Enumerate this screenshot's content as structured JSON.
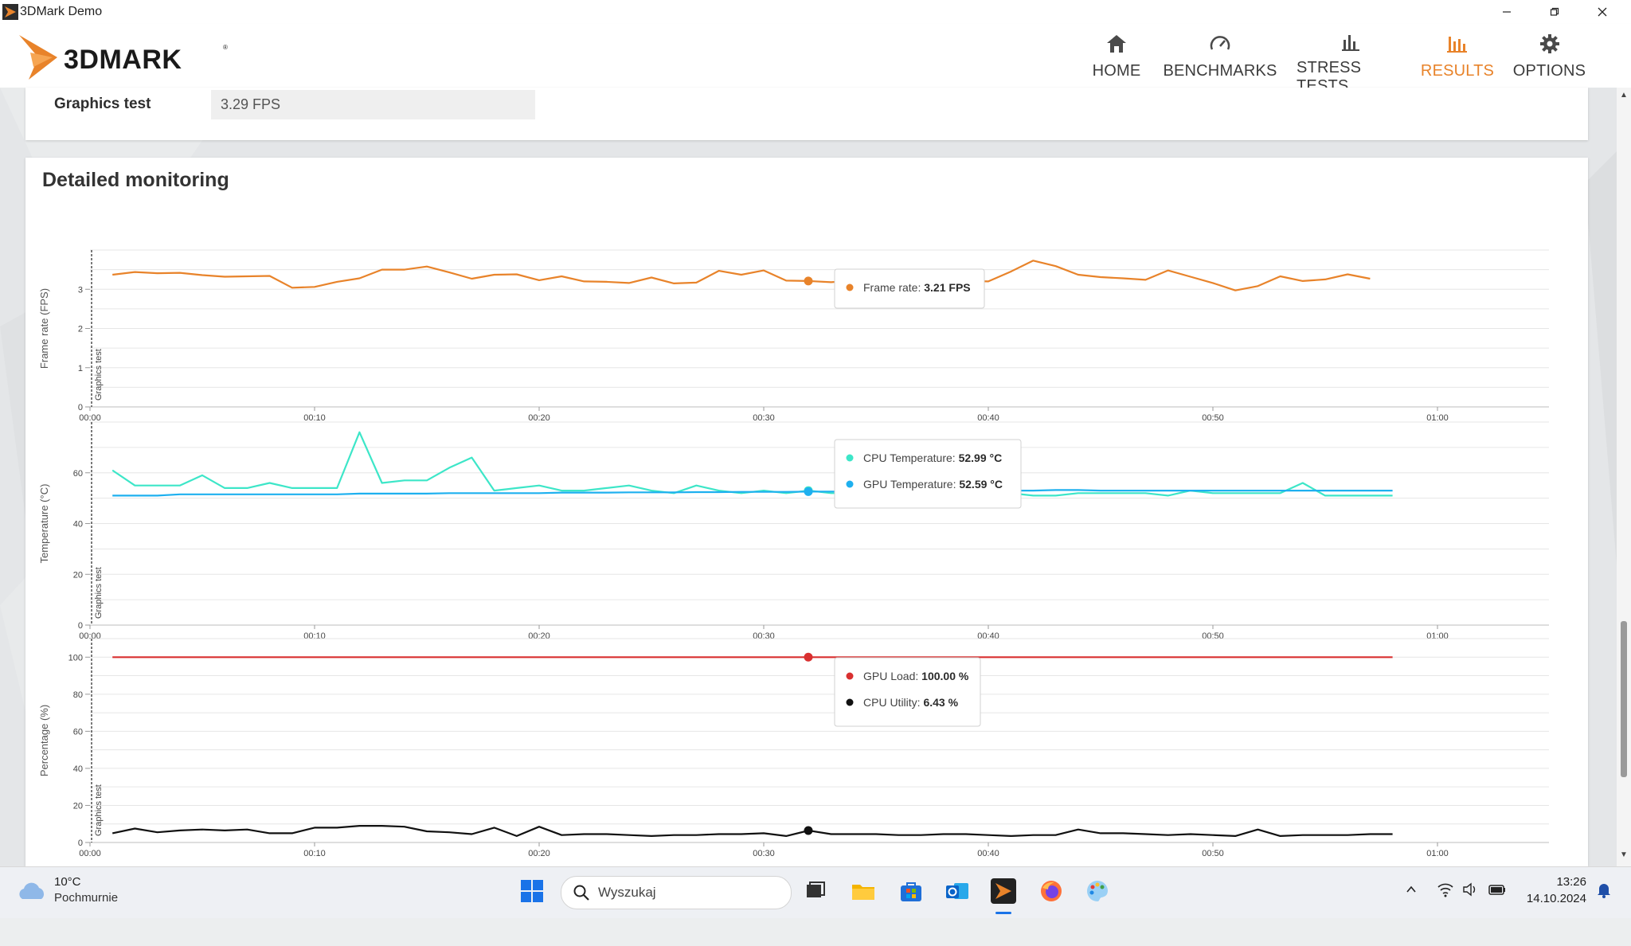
{
  "window": {
    "title": "3DMark Demo"
  },
  "nav": [
    {
      "label": "HOME",
      "icon": "home-icon",
      "active": false
    },
    {
      "label": "BENCHMARKS",
      "icon": "speedometer-icon",
      "active": false
    },
    {
      "label": "STRESS TESTS",
      "icon": "bar-chart-icon",
      "active": false
    },
    {
      "label": "RESULTS",
      "icon": "results-chart-icon",
      "active": true
    },
    {
      "label": "OPTIONS",
      "icon": "gear-icon",
      "active": false
    }
  ],
  "colors": {
    "accent": "#e8832a",
    "frame_rate": "#e8832a",
    "cpu_temp": "#3de6c8",
    "gpu_temp": "#1eb0ef",
    "gpu_load": "#d93030",
    "cpu_util": "#111111"
  },
  "result_row": {
    "label": "Graphics test",
    "value": "3.29 FPS"
  },
  "monitoring": {
    "title": "Detailed monitoring"
  },
  "chart_data": [
    {
      "type": "line",
      "ylabel": "Frame rate (FPS)",
      "marker_label": "Graphics test",
      "ylim": [
        0,
        4
      ],
      "yticks": [
        0,
        1,
        2,
        3
      ],
      "xticks": [
        "00:00",
        "00:10",
        "00:20",
        "00:30",
        "00:40",
        "00:50",
        "01:00"
      ],
      "x": [
        1,
        2,
        3,
        4,
        5,
        6,
        7,
        8,
        9,
        10,
        11,
        12,
        13,
        14,
        15,
        16,
        17,
        18,
        19,
        20,
        21,
        22,
        23,
        24,
        25,
        26,
        27,
        28,
        29,
        30,
        31,
        32,
        33,
        34,
        35,
        36,
        37,
        38,
        39,
        40,
        41,
        42,
        43,
        44,
        45,
        46,
        47,
        48,
        49,
        50,
        51,
        52,
        53,
        54,
        55,
        56,
        57
      ],
      "series": [
        {
          "name": "Frame rate",
          "values": [
            3.37,
            3.44,
            3.41,
            3.42,
            3.36,
            3.32,
            3.33,
            3.34,
            3.04,
            3.06,
            3.19,
            3.28,
            3.5,
            3.5,
            3.58,
            3.43,
            3.27,
            3.37,
            3.38,
            3.23,
            3.33,
            3.2,
            3.19,
            3.16,
            3.3,
            3.15,
            3.17,
            3.47,
            3.37,
            3.48,
            3.22,
            3.21,
            3.18,
            3.22,
            3.24,
            3.26,
            3.25,
            3.2,
            3.21,
            3.2,
            3.45,
            3.73,
            3.59,
            3.37,
            3.31,
            3.28,
            3.24,
            3.48,
            3.32,
            3.16,
            2.97,
            3.08,
            3.33,
            3.21,
            3.25,
            3.38,
            3.27
          ]
        }
      ],
      "tooltip": [
        {
          "label": "Frame rate:",
          "value": "3.21 FPS"
        }
      ]
    },
    {
      "type": "line",
      "ylabel": "Temperature (°C)",
      "marker_label": "Graphics test",
      "ylim": [
        0,
        80
      ],
      "yticks": [
        0,
        20,
        40,
        60
      ],
      "xticks": [
        "00:00",
        "00:10",
        "00:20",
        "00:30",
        "00:40",
        "00:50",
        "01:00"
      ],
      "x": [
        1,
        2,
        3,
        4,
        5,
        6,
        7,
        8,
        9,
        10,
        11,
        12,
        13,
        14,
        15,
        16,
        17,
        18,
        19,
        20,
        21,
        22,
        23,
        24,
        25,
        26,
        27,
        28,
        29,
        30,
        31,
        32,
        33,
        34,
        35,
        36,
        37,
        38,
        39,
        40,
        41,
        42,
        43,
        44,
        45,
        46,
        47,
        48,
        49,
        50,
        51,
        52,
        53,
        54,
        55,
        56,
        57,
        58
      ],
      "series": [
        {
          "name": "CPU Temperature",
          "values": [
            61,
            55,
            55,
            55,
            59,
            54,
            54,
            56,
            54,
            54,
            54,
            76,
            56,
            57,
            57,
            62,
            66,
            53,
            54,
            55,
            53,
            53,
            54,
            55,
            53,
            52,
            55,
            53,
            52,
            53,
            52,
            53,
            52,
            52,
            52,
            52,
            51,
            52,
            53,
            53,
            52,
            51,
            51,
            52,
            52,
            52,
            52,
            51,
            53,
            52,
            52,
            52,
            52,
            56,
            51,
            51,
            51,
            51
          ]
        },
        {
          "name": "GPU Temperature",
          "values": [
            51,
            51,
            51,
            51.5,
            51.5,
            51.5,
            51.5,
            51.5,
            51.5,
            51.5,
            51.5,
            51.8,
            51.8,
            51.8,
            51.8,
            52,
            52,
            52,
            52,
            52,
            52.2,
            52.2,
            52.2,
            52.3,
            52.3,
            52.3,
            52.4,
            52.4,
            52.5,
            52.5,
            52.5,
            52.59,
            52.6,
            52.6,
            52.8,
            52.8,
            52.8,
            53,
            53,
            53,
            53,
            53,
            53.2,
            53.2,
            53,
            53,
            53,
            53,
            53,
            53,
            53,
            53,
            53,
            53,
            53,
            53,
            53,
            53
          ]
        }
      ],
      "tooltip": [
        {
          "label": "CPU Temperature:",
          "value": "52.99 °C"
        },
        {
          "label": "GPU Temperature:",
          "value": "52.59 °C"
        }
      ]
    },
    {
      "type": "line",
      "ylabel": "Percentage (%)",
      "marker_label": "Graphics test",
      "ylim": [
        0,
        110
      ],
      "yticks": [
        0,
        20,
        40,
        60,
        80,
        100
      ],
      "xticks": [
        "00:00",
        "00:10",
        "00:20",
        "00:30",
        "00:40",
        "00:50",
        "01:00"
      ],
      "x": [
        1,
        2,
        3,
        4,
        5,
        6,
        7,
        8,
        9,
        10,
        11,
        12,
        13,
        14,
        15,
        16,
        17,
        18,
        19,
        20,
        21,
        22,
        23,
        24,
        25,
        26,
        27,
        28,
        29,
        30,
        31,
        32,
        33,
        34,
        35,
        36,
        37,
        38,
        39,
        40,
        41,
        42,
        43,
        44,
        45,
        46,
        47,
        48,
        49,
        50,
        51,
        52,
        53,
        54,
        55,
        56,
        57,
        58
      ],
      "series": [
        {
          "name": "GPU Load",
          "values": [
            100,
            100,
            100,
            100,
            100,
            100,
            100,
            100,
            100,
            100,
            100,
            100,
            100,
            100,
            100,
            100,
            100,
            100,
            100,
            100,
            100,
            100,
            100,
            100,
            100,
            100,
            100,
            100,
            100,
            100,
            100,
            100,
            100,
            100,
            100,
            100,
            100,
            100,
            100,
            100,
            100,
            100,
            100,
            100,
            100,
            100,
            100,
            100,
            100,
            100,
            100,
            100,
            100,
            100,
            100,
            100,
            100,
            100
          ]
        },
        {
          "name": "CPU Utility",
          "values": [
            5,
            7.5,
            5.5,
            6.5,
            7,
            6.5,
            7,
            5,
            5,
            8,
            8,
            9,
            9,
            8.5,
            6,
            5.5,
            4.5,
            8,
            3.5,
            8.5,
            4,
            4.5,
            4.5,
            4,
            3.5,
            4,
            4,
            4.5,
            4.5,
            5,
            3.5,
            6.43,
            4.5,
            4.5,
            4.5,
            4,
            4,
            4.5,
            4.5,
            4,
            3.5,
            4,
            4,
            7,
            5,
            5,
            4.5,
            4,
            4.5,
            4,
            3.5,
            7,
            3.5,
            4,
            4,
            4,
            4.5,
            4.5
          ]
        }
      ],
      "tooltip": [
        {
          "label": "GPU Load:",
          "value": "100.00 %"
        },
        {
          "label": "CPU Utility:",
          "value": "6.43 %"
        }
      ]
    }
  ],
  "taskbar": {
    "weather_temp": "10°C",
    "weather_cond": "Pochmurnie",
    "search_placeholder": "Wyszukaj",
    "time": "13:26",
    "date": "14.10.2024"
  }
}
